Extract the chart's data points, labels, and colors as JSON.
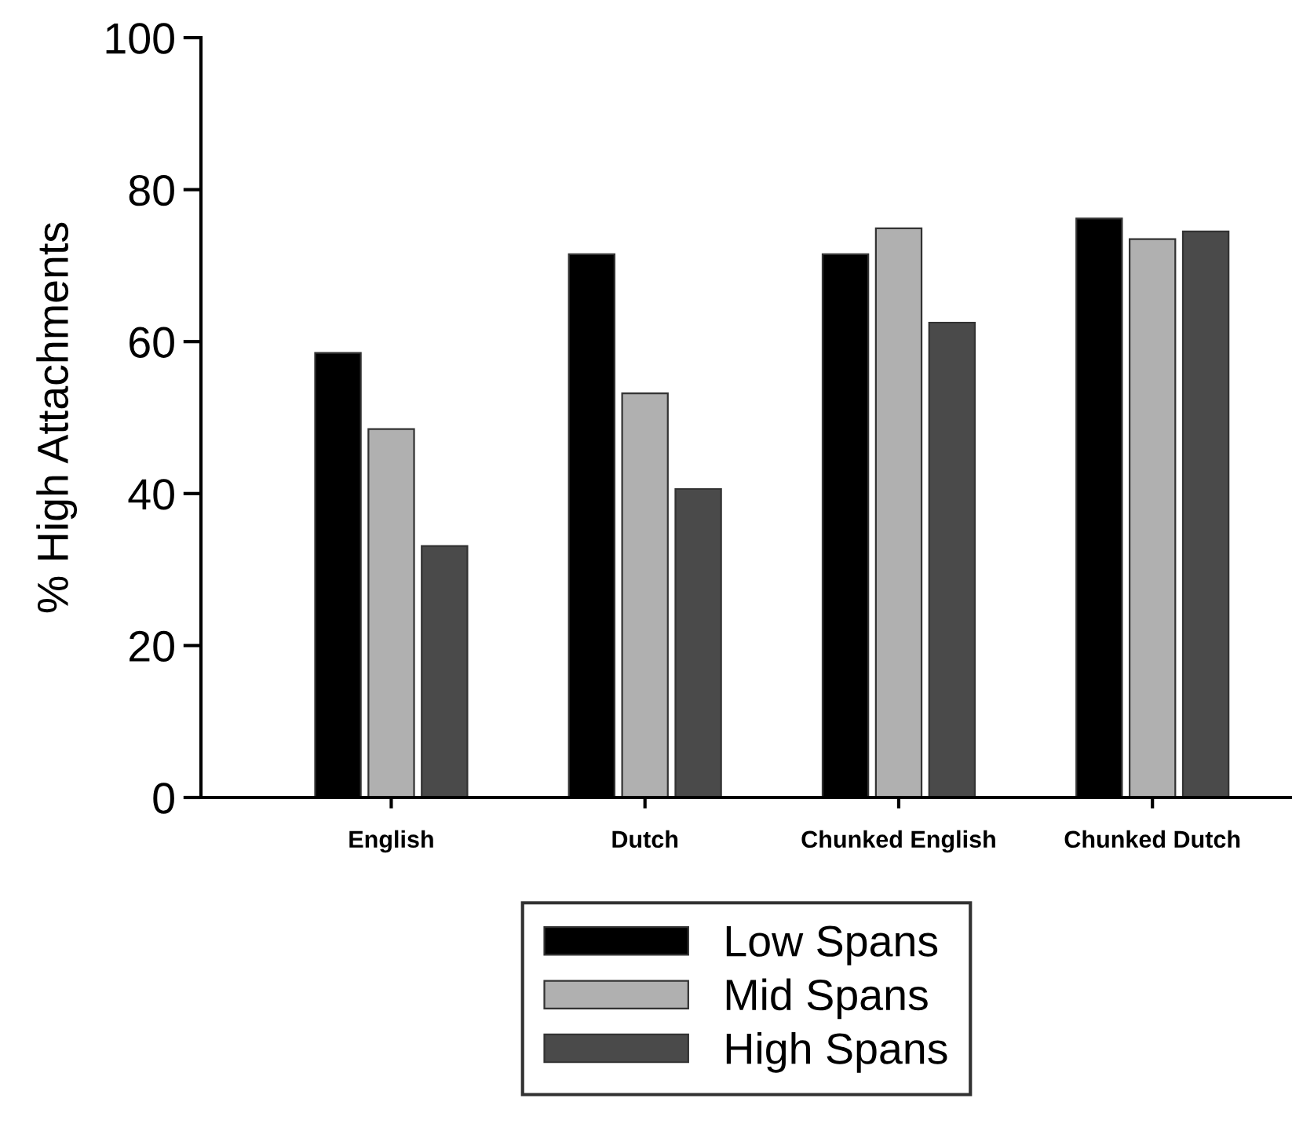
{
  "chart_data": {
    "type": "bar",
    "ylabel": "% High Attachments",
    "categories": [
      "English",
      "Dutch",
      "Chunked English",
      "Chunked Dutch"
    ],
    "series": [
      {
        "name": "Low Spans",
        "color": "#000000",
        "values": [
          58.5,
          71.5,
          71.5,
          76.2
        ]
      },
      {
        "name": "Mid Spans",
        "color": "#b0b0b0",
        "values": [
          48.5,
          53.2,
          74.9,
          73.5
        ]
      },
      {
        "name": "High Spans",
        "color": "#4a4a4a",
        "values": [
          33.1,
          40.6,
          62.5,
          74.5
        ]
      }
    ],
    "ylim": [
      0,
      100
    ],
    "yticks": [
      0,
      20,
      40,
      60,
      80,
      100
    ],
    "grid": false,
    "legend": "bottom"
  }
}
